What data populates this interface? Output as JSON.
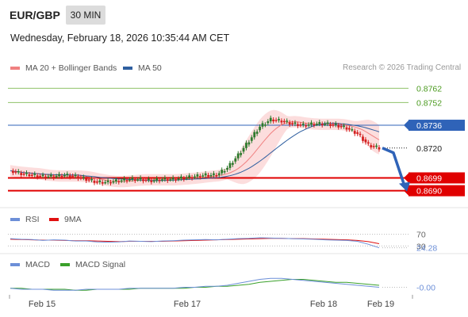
{
  "header": {
    "symbol": "EUR/GBP",
    "timeframe": "30 MIN",
    "datetime": "Wednesday, February 18, 2026 10:35:44 AM CET",
    "credit": "Research © 2026 Trading Central"
  },
  "colors": {
    "ma20": "#f08080",
    "ma50": "#2f5fa0",
    "bollinger_fill": "#fbd5d5",
    "resistance": "#8fc36a",
    "resistance_text": "#4a9a1e",
    "pivot": "#2f63b8",
    "support": "#e00000",
    "rsi": "#6c8fd8",
    "rsi_ma": "#e01010",
    "macd": "#6c8fd8",
    "macd_signal": "#3aa02a",
    "candle_up": "#2d7a2d",
    "candle_down": "#d42020",
    "current": "#222222"
  },
  "chart_data": [
    {
      "type": "candlestick",
      "title": "EUR/GBP",
      "timeframe": "30 MIN",
      "legend": [
        {
          "name": "MA 20 + Bollinger Bands",
          "color": "#f08080"
        },
        {
          "name": "MA 50",
          "color": "#2f5fa0"
        }
      ],
      "x_ticks": [
        "Feb 15",
        "Feb 17",
        "Feb 18",
        "Feb 19"
      ],
      "ylim": [
        0.8682,
        0.877
      ],
      "levels": [
        {
          "value": 0.8762,
          "label": "0.8762",
          "role": "resistance"
        },
        {
          "value": 0.8752,
          "label": "0.8752",
          "role": "resistance"
        },
        {
          "value": 0.8736,
          "label": "0.8736",
          "role": "pivot"
        },
        {
          "value": 0.872,
          "label": "0.8720",
          "role": "current"
        },
        {
          "value": 0.8699,
          "label": "0.8699",
          "role": "support"
        },
        {
          "value": 0.869,
          "label": "0.8690",
          "role": "support"
        }
      ],
      "close_path": [
        0.8704,
        0.8702,
        0.8701,
        0.87,
        0.87,
        0.8701,
        0.87,
        0.8698,
        0.8696,
        0.8696,
        0.8697,
        0.8698,
        0.8698,
        0.8697,
        0.8698,
        0.8698,
        0.8699,
        0.87,
        0.8701,
        0.8701,
        0.8706,
        0.8715,
        0.8725,
        0.8735,
        0.874,
        0.8739,
        0.8737,
        0.8736,
        0.8737,
        0.8737,
        0.8736,
        0.8734,
        0.873,
        0.8722,
        0.872
      ],
      "forecast_arrow": {
        "from": 0.872,
        "to": 0.869
      }
    },
    {
      "type": "line",
      "name": "RSI",
      "legend": [
        {
          "name": "RSI",
          "color": "#6c8fd8"
        },
        {
          "name": "9MA",
          "color": "#e01010"
        }
      ],
      "levels": [
        {
          "value": 70,
          "label": "70"
        },
        {
          "value": 30,
          "label": "30"
        }
      ],
      "current_value": "24.28",
      "ylim": [
        15,
        85
      ],
      "rsi": [
        55,
        53,
        52,
        49,
        51,
        50,
        47,
        47,
        44,
        43,
        44,
        47,
        46,
        45,
        47,
        48,
        50,
        51,
        52,
        51,
        53,
        55,
        56,
        58,
        57,
        56,
        55,
        54,
        53,
        51,
        50,
        49,
        46,
        36,
        24
      ],
      "ma9": [
        53,
        52,
        51,
        50,
        50,
        49,
        48,
        48,
        47,
        46,
        45,
        46,
        46,
        46,
        46,
        47,
        48,
        49,
        50,
        51,
        52,
        53,
        54,
        55,
        56,
        56,
        55,
        55,
        54,
        53,
        52,
        51,
        49,
        45,
        38
      ]
    },
    {
      "type": "line",
      "name": "MACD",
      "legend": [
        {
          "name": "MACD",
          "color": "#6c8fd8"
        },
        {
          "name": "MACD Signal",
          "color": "#3aa02a"
        }
      ],
      "current_value": "-0.00",
      "ylim": [
        -0.0006,
        0.0014
      ],
      "macd": [
        -0.0001,
        -0.0002,
        -0.0002,
        -0.0002,
        -0.0003,
        -0.0003,
        -0.0003,
        -0.0002,
        -0.0002,
        -0.0002,
        -0.0002,
        -0.0001,
        -0.0001,
        -0.0001,
        -0.0001,
        -0.0001,
        0.0,
        0.0,
        0.0001,
        0.0001,
        0.0002,
        0.0004,
        0.0006,
        0.0008,
        0.0009,
        0.0009,
        0.0008,
        0.0007,
        0.0006,
        0.0005,
        0.0004,
        0.0003,
        0.0002,
        0.0001,
        0.0
      ],
      "signal": [
        -0.0001,
        -0.0001,
        -0.0002,
        -0.0002,
        -0.0002,
        -0.0002,
        -0.0003,
        -0.0003,
        -0.0002,
        -0.0002,
        -0.0002,
        -0.0002,
        -0.0001,
        -0.0001,
        -0.0001,
        -0.0001,
        -0.0001,
        0.0,
        0.0,
        0.0001,
        0.0001,
        0.0002,
        0.0003,
        0.0005,
        0.0006,
        0.0007,
        0.0008,
        0.0008,
        0.0007,
        0.0006,
        0.0005,
        0.0005,
        0.0004,
        0.0003,
        0.0002
      ]
    }
  ]
}
